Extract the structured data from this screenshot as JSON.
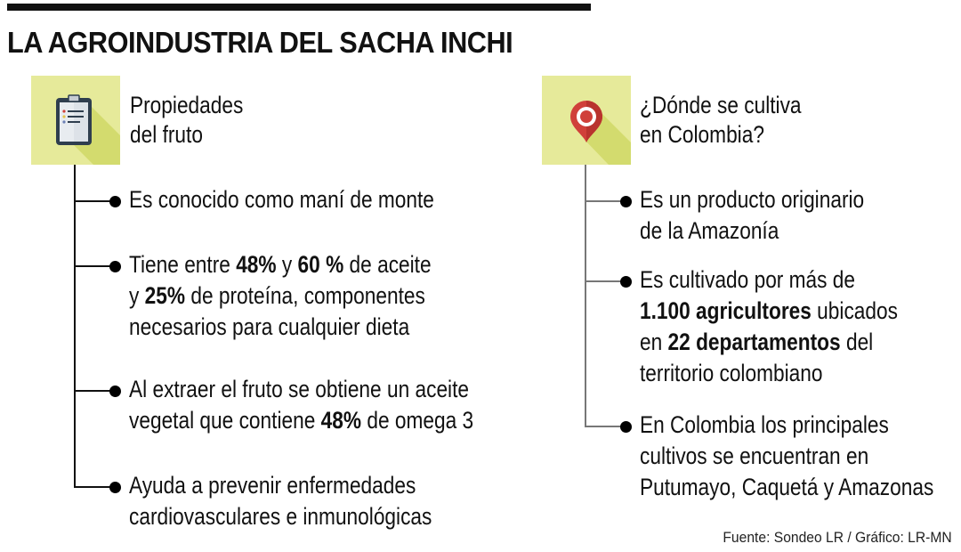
{
  "header": {
    "title": "LA AGROINDUSTRIA DEL SACHA INCHI"
  },
  "colors": {
    "icon_bg": "#e6ea9a",
    "icon_shadow": "#d3db6e",
    "left_connector": "#111111",
    "right_connector": "#777777",
    "pin_red": "#d0403a",
    "clipboard_frame": "#2f3e4e"
  },
  "left_section": {
    "icon": "clipboard-icon",
    "title_line1": "Propiedades",
    "title_line2": "del fruto",
    "items": [
      {
        "lines": [
          [
            {
              "t": "Es conocido como maní de monte",
              "b": false
            }
          ]
        ]
      },
      {
        "lines": [
          [
            {
              "t": "Tiene entre ",
              "b": false
            },
            {
              "t": "48%",
              "b": true
            },
            {
              "t": " y ",
              "b": false
            },
            {
              "t": "60 %",
              "b": true
            },
            {
              "t": " de aceite",
              "b": false
            }
          ],
          [
            {
              "t": "y ",
              "b": false
            },
            {
              "t": "25%",
              "b": true
            },
            {
              "t": " de proteína, componentes",
              "b": false
            }
          ],
          [
            {
              "t": "necesarios para cualquier dieta",
              "b": false
            }
          ]
        ]
      },
      {
        "lines": [
          [
            {
              "t": "Al extraer el fruto se obtiene un aceite",
              "b": false
            }
          ],
          [
            {
              "t": "vegetal que contiene ",
              "b": false
            },
            {
              "t": "48%",
              "b": true
            },
            {
              "t": " de omega 3",
              "b": false
            }
          ]
        ]
      },
      {
        "lines": [
          [
            {
              "t": "Ayuda a prevenir enfermedades",
              "b": false
            }
          ],
          [
            {
              "t": "cardiovasculares e inmunológicas",
              "b": false
            }
          ]
        ]
      }
    ]
  },
  "right_section": {
    "icon": "map-pin-icon",
    "title_line1": "¿Dónde se cultiva",
    "title_line2": "en Colombia?",
    "items": [
      {
        "lines": [
          [
            {
              "t": "Es un producto originario",
              "b": false
            }
          ],
          [
            {
              "t": "de la Amazonía",
              "b": false
            }
          ]
        ]
      },
      {
        "lines": [
          [
            {
              "t": "Es cultivado por más de",
              "b": false
            }
          ],
          [
            {
              "t": "1.100 agricultores",
              "b": true
            },
            {
              "t": " ubicados",
              "b": false
            }
          ],
          [
            {
              "t": "en ",
              "b": false
            },
            {
              "t": "22 departamentos",
              "b": true
            },
            {
              "t": " del",
              "b": false
            }
          ],
          [
            {
              "t": "territorio colombiano",
              "b": false
            }
          ]
        ]
      },
      {
        "lines": [
          [
            {
              "t": "En Colombia los principales",
              "b": false
            }
          ],
          [
            {
              "t": "cultivos se encuentran en",
              "b": false
            }
          ],
          [
            {
              "t": "Putumayo, Caquetá y Amazonas",
              "b": false
            }
          ]
        ]
      }
    ]
  },
  "footer": {
    "source": "Fuente: Sondeo LR / Gráfico: LR-MN"
  }
}
